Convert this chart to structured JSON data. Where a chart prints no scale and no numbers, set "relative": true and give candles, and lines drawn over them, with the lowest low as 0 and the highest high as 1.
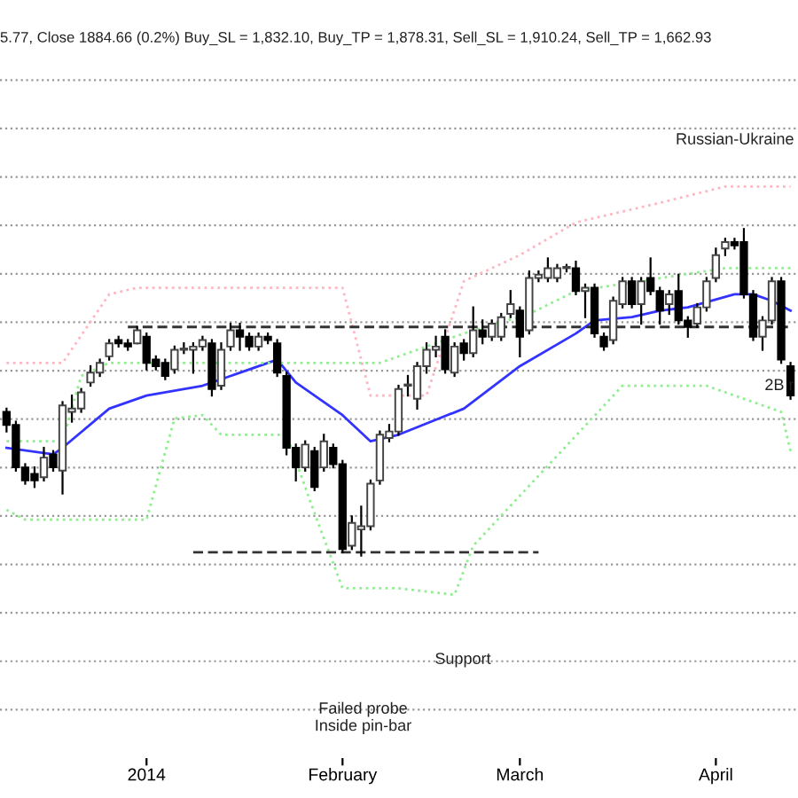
{
  "chart_data": {
    "type": "candlestick",
    "relative": true,
    "grid": "y",
    "legend": false,
    "categories": [
      null,
      null,
      null,
      null,
      null,
      null,
      null,
      null,
      null,
      null,
      null,
      null,
      null,
      null,
      null,
      "2014",
      null,
      null,
      null,
      null,
      null,
      null,
      null,
      null,
      null,
      null,
      null,
      null,
      null,
      null,
      null,
      null,
      null,
      null,
      null,
      null,
      "February",
      null,
      null,
      null,
      null,
      null,
      null,
      null,
      null,
      null,
      null,
      null,
      null,
      null,
      null,
      null,
      null,
      null,
      null,
      "March",
      null,
      null,
      null,
      null,
      null,
      null,
      null,
      null,
      null,
      null,
      null,
      null,
      null,
      null,
      null,
      null,
      null,
      null,
      null,
      null,
      "April",
      null,
      null,
      null,
      null,
      null,
      null,
      null,
      null
    ],
    "ohlc": [
      [
        0.44,
        0.45,
        0.38,
        0.4
      ],
      [
        0.4,
        0.41,
        0.26,
        0.27
      ],
      [
        0.27,
        0.28,
        0.22,
        0.23
      ],
      [
        0.25,
        0.27,
        0.21,
        0.23
      ],
      [
        0.24,
        0.33,
        0.23,
        0.3
      ],
      [
        0.31,
        0.32,
        0.26,
        0.27
      ],
      [
        0.26,
        0.47,
        0.19,
        0.46
      ],
      [
        0.44,
        0.49,
        0.41,
        0.45
      ],
      [
        0.45,
        0.51,
        0.44,
        0.5
      ],
      [
        0.53,
        0.58,
        0.52,
        0.56
      ],
      [
        0.56,
        0.6,
        0.55,
        0.59
      ],
      [
        0.61,
        0.66,
        0.6,
        0.65
      ],
      [
        0.66,
        0.67,
        0.64,
        0.65
      ],
      [
        0.65,
        0.66,
        0.63,
        0.64
      ],
      [
        0.65,
        0.7,
        0.65,
        0.69
      ],
      [
        0.67,
        0.68,
        0.57,
        0.59
      ],
      [
        0.6,
        0.61,
        0.57,
        0.58
      ],
      [
        0.59,
        0.6,
        0.54,
        0.55
      ],
      [
        0.57,
        0.64,
        0.56,
        0.63
      ],
      [
        0.63,
        0.65,
        0.62,
        0.63
      ],
      [
        0.63,
        0.65,
        0.56,
        0.64
      ],
      [
        0.64,
        0.67,
        0.63,
        0.66
      ],
      [
        0.65,
        0.66,
        0.49,
        0.51
      ],
      [
        0.52,
        0.65,
        0.51,
        0.63
      ],
      [
        0.64,
        0.71,
        0.63,
        0.69
      ],
      [
        0.69,
        0.71,
        0.63,
        0.67
      ],
      [
        0.67,
        0.68,
        0.63,
        0.64
      ],
      [
        0.64,
        0.68,
        0.63,
        0.67
      ],
      [
        0.67,
        0.68,
        0.65,
        0.66
      ],
      [
        0.65,
        0.66,
        0.55,
        0.56
      ],
      [
        0.55,
        0.56,
        0.31,
        0.33
      ],
      [
        0.33,
        0.34,
        0.23,
        0.27
      ],
      [
        0.27,
        0.35,
        0.26,
        0.34
      ],
      [
        0.32,
        0.33,
        0.2,
        0.21
      ],
      [
        0.27,
        0.37,
        0.26,
        0.35
      ],
      [
        0.33,
        0.34,
        0.27,
        0.28
      ],
      [
        0.28,
        0.29,
        0.01,
        0.02
      ],
      [
        0.03,
        0.12,
        0.02,
        0.1
      ],
      [
        0.08,
        0.15,
        0.0,
        0.09
      ],
      [
        0.09,
        0.23,
        0.08,
        0.22
      ],
      [
        0.23,
        0.38,
        0.22,
        0.37
      ],
      [
        0.36,
        0.4,
        0.35,
        0.38
      ],
      [
        0.38,
        0.52,
        0.37,
        0.51
      ],
      [
        0.52,
        0.55,
        0.49,
        0.52
      ],
      [
        0.48,
        0.59,
        0.45,
        0.58
      ],
      [
        0.58,
        0.65,
        0.56,
        0.63
      ],
      [
        0.63,
        0.67,
        0.61,
        0.64
      ],
      [
        0.67,
        0.69,
        0.56,
        0.57
      ],
      [
        0.56,
        0.65,
        0.55,
        0.64
      ],
      [
        0.65,
        0.66,
        0.6,
        0.62
      ],
      [
        0.62,
        0.76,
        0.61,
        0.69
      ],
      [
        0.69,
        0.72,
        0.65,
        0.67
      ],
      [
        0.67,
        0.72,
        0.66,
        0.71
      ],
      [
        0.67,
        0.74,
        0.66,
        0.73
      ],
      [
        0.74,
        0.81,
        0.73,
        0.77
      ],
      [
        0.75,
        0.76,
        0.61,
        0.67
      ],
      [
        0.69,
        0.87,
        0.68,
        0.85
      ],
      [
        0.85,
        0.87,
        0.84,
        0.86
      ],
      [
        0.85,
        0.91,
        0.84,
        0.88
      ],
      [
        0.85,
        0.89,
        0.84,
        0.88
      ],
      [
        0.88,
        0.89,
        0.87,
        0.88
      ],
      [
        0.88,
        0.9,
        0.8,
        0.81
      ],
      [
        0.81,
        0.83,
        0.73,
        0.82
      ],
      [
        0.82,
        0.83,
        0.67,
        0.68
      ],
      [
        0.67,
        0.68,
        0.63,
        0.64
      ],
      [
        0.66,
        0.79,
        0.65,
        0.78
      ],
      [
        0.77,
        0.85,
        0.76,
        0.84
      ],
      [
        0.84,
        0.85,
        0.76,
        0.77
      ],
      [
        0.77,
        0.85,
        0.71,
        0.84
      ],
      [
        0.85,
        0.91,
        0.8,
        0.81
      ],
      [
        0.81,
        0.82,
        0.71,
        0.75
      ],
      [
        0.77,
        0.81,
        0.74,
        0.8
      ],
      [
        0.81,
        0.86,
        0.71,
        0.72
      ],
      [
        0.72,
        0.73,
        0.67,
        0.7
      ],
      [
        0.71,
        0.77,
        0.7,
        0.76
      ],
      [
        0.76,
        0.85,
        0.75,
        0.84
      ],
      [
        0.85,
        0.94,
        0.84,
        0.92
      ],
      [
        0.94,
        0.97,
        0.92,
        0.96
      ],
      [
        0.96,
        0.97,
        0.94,
        0.95
      ],
      [
        0.96,
        1.0,
        0.79,
        0.8
      ],
      [
        0.8,
        0.81,
        0.66,
        0.67
      ],
      [
        0.67,
        0.73,
        0.63,
        0.72
      ],
      [
        0.72,
        0.85,
        0.71,
        0.84
      ],
      [
        0.84,
        0.85,
        0.59,
        0.6
      ],
      [
        0.58,
        0.59,
        0.48,
        0.49
      ]
    ],
    "series": [
      {
        "type": "line",
        "color": "#3333ff",
        "line_style": "solid",
        "values": [
          0.33,
          null,
          null,
          null,
          null,
          0.31,
          0.33,
          null,
          null,
          null,
          null,
          0.45,
          null,
          null,
          null,
          0.49,
          null,
          null,
          null,
          null,
          null,
          0.52,
          null,
          null,
          null,
          0.56,
          null,
          null,
          null,
          0.6,
          null,
          0.53,
          null,
          null,
          null,
          null,
          0.43,
          null,
          null,
          0.35,
          null,
          null,
          0.37,
          null,
          null,
          null,
          null,
          null,
          null,
          0.45,
          null,
          null,
          null,
          null,
          null,
          0.58,
          null,
          null,
          null,
          null,
          null,
          0.68,
          null,
          0.72,
          null,
          null,
          null,
          0.73,
          null,
          null,
          0.75,
          null,
          null,
          0.76,
          null,
          null,
          null,
          null,
          0.8,
          null,
          0.8,
          null,
          0.78,
          null,
          0.75
        ]
      },
      {
        "type": "line",
        "color": "#ffb6c1",
        "line_style": "dotted",
        "values": [
          0.59,
          null,
          null,
          null,
          null,
          null,
          0.59,
          null,
          null,
          null,
          null,
          0.8,
          null,
          null,
          0.82,
          null,
          null,
          null,
          null,
          null,
          null,
          null,
          null,
          null,
          null,
          null,
          null,
          null,
          null,
          null,
          null,
          null,
          null,
          null,
          null,
          null,
          0.82,
          null,
          null,
          0.49,
          null,
          null,
          0.49,
          null,
          null,
          0.49,
          null,
          null,
          null,
          0.84,
          null,
          null,
          null,
          null,
          null,
          0.92,
          null,
          null,
          null,
          null,
          null,
          1.02,
          null,
          null,
          null,
          null,
          null,
          null,
          null,
          null,
          1.08,
          null,
          null,
          null,
          null,
          null,
          null,
          1.13,
          null,
          null,
          null,
          null,
          null,
          null,
          1.13
        ]
      },
      {
        "type": "line",
        "color": "#90ee90",
        "line_style": "dotted",
        "values": [
          0.35,
          null,
          null,
          null,
          null,
          null,
          0.35,
          null,
          0.55,
          null,
          null,
          0.59,
          null,
          null,
          null,
          null,
          null,
          null,
          null,
          null,
          null,
          null,
          null,
          null,
          null,
          null,
          null,
          null,
          null,
          null,
          null,
          null,
          null,
          null,
          null,
          null,
          null,
          null,
          null,
          null,
          0.59,
          null,
          null,
          null,
          null,
          null,
          null,
          null,
          null,
          0.68,
          null,
          null,
          null,
          null,
          null,
          null,
          0.74,
          null,
          null,
          null,
          null,
          0.81,
          null,
          null,
          null,
          null,
          null,
          null,
          null,
          null,
          null,
          null,
          null,
          null,
          null,
          null,
          null,
          0.88,
          null,
          null,
          null,
          null,
          null,
          null,
          0.88
        ]
      },
      {
        "type": "line",
        "color": "#90ee90",
        "line_style": "dotted",
        "values": [
          0.14,
          null,
          0.11,
          null,
          null,
          null,
          null,
          null,
          null,
          null,
          null,
          null,
          null,
          null,
          null,
          0.11,
          null,
          null,
          0.42,
          null,
          null,
          0.43,
          null,
          0.37,
          null,
          null,
          null,
          null,
          null,
          null,
          0.37,
          null,
          null,
          0.13,
          null,
          null,
          -0.1,
          null,
          null,
          null,
          null,
          null,
          -0.1,
          null,
          null,
          null,
          null,
          null,
          -0.12,
          null,
          0.03,
          null,
          null,
          null,
          null,
          null,
          null,
          null,
          null,
          null,
          null,
          null,
          null,
          null,
          null,
          null,
          0.52,
          null,
          null,
          null,
          null,
          null,
          null,
          null,
          null,
          0.52,
          null,
          null,
          null,
          null,
          null,
          null,
          null,
          0.44,
          0.32
        ]
      },
      {
        "type": "line",
        "color": "#333333",
        "line_style": "dashed",
        "values": [
          null,
          null,
          null,
          null,
          null,
          null,
          null,
          null,
          null,
          null,
          null,
          null,
          null,
          0.7,
          null,
          null,
          null,
          null,
          null,
          null,
          null,
          null,
          null,
          null,
          null,
          null,
          null,
          null,
          null,
          null,
          null,
          null,
          null,
          null,
          null,
          null,
          null,
          null,
          null,
          null,
          null,
          null,
          null,
          null,
          null,
          null,
          null,
          null,
          null,
          null,
          null,
          null,
          null,
          null,
          null,
          null,
          null,
          null,
          null,
          null,
          null,
          null,
          null,
          null,
          null,
          null,
          null,
          null,
          null,
          null,
          null,
          null,
          null,
          null,
          null,
          null,
          null,
          null,
          null,
          null,
          null,
          null,
          null,
          null,
          0.7
        ]
      },
      {
        "type": "line",
        "color": "#333333",
        "line_style": "dashed",
        "values": [
          null,
          null,
          null,
          null,
          null,
          null,
          null,
          null,
          null,
          null,
          null,
          null,
          null,
          null,
          null,
          null,
          null,
          null,
          null,
          null,
          0.01,
          null,
          null,
          null,
          null,
          null,
          null,
          null,
          null,
          null,
          null,
          null,
          null,
          null,
          null,
          null,
          null,
          null,
          null,
          null,
          null,
          null,
          null,
          null,
          null,
          null,
          null,
          null,
          null,
          null,
          null,
          null,
          null,
          null,
          null,
          null,
          null,
          0.01,
          null,
          null,
          null,
          null,
          null,
          null,
          null,
          null,
          null,
          null,
          null,
          null,
          null,
          null,
          null,
          null,
          null,
          null,
          null,
          null,
          null,
          null,
          null,
          null,
          null,
          null,
          null
        ]
      }
    ],
    "annotations": [
      "5.77, Close 1884.66 (0.2%) Buy_SL = 1,832.10, Buy_TP = 1,878.31, Sell_SL = 1,910.24, Sell_TP = 1,662.93",
      "Failed probe\nInside pin-bar",
      "Support",
      "Russian-Ukraine",
      "2B r"
    ]
  }
}
